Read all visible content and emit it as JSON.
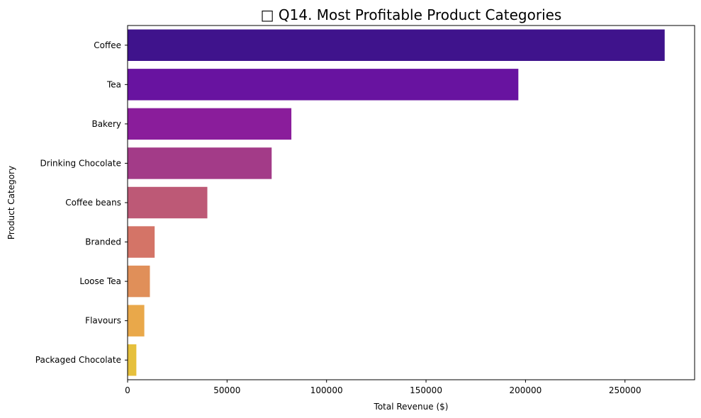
{
  "chart_data": {
    "type": "bar",
    "orientation": "horizontal",
    "title": "□ Q14. Most Profitable Product Categories",
    "xlabel": "Total Revenue ($)",
    "ylabel": "Product Category",
    "xlim": [
      0,
      285000
    ],
    "xticks": [
      0,
      50000,
      100000,
      150000,
      200000,
      250000
    ],
    "grid": false,
    "categories": [
      "Coffee",
      "Tea",
      "Bakery",
      "Drinking Chocolate",
      "Coffee beans",
      "Branded",
      "Loose Tea",
      "Flavours",
      "Packaged Chocolate"
    ],
    "values": [
      269952,
      196406,
      82316,
      72416,
      40085,
      13607,
      11213,
      8409,
      4408
    ],
    "colors": [
      "#3f138c",
      "#6813a0",
      "#8a1d9b",
      "#a33b88",
      "#bd5976",
      "#d47467",
      "#e08f59",
      "#e9a84a",
      "#e6c03c"
    ]
  }
}
